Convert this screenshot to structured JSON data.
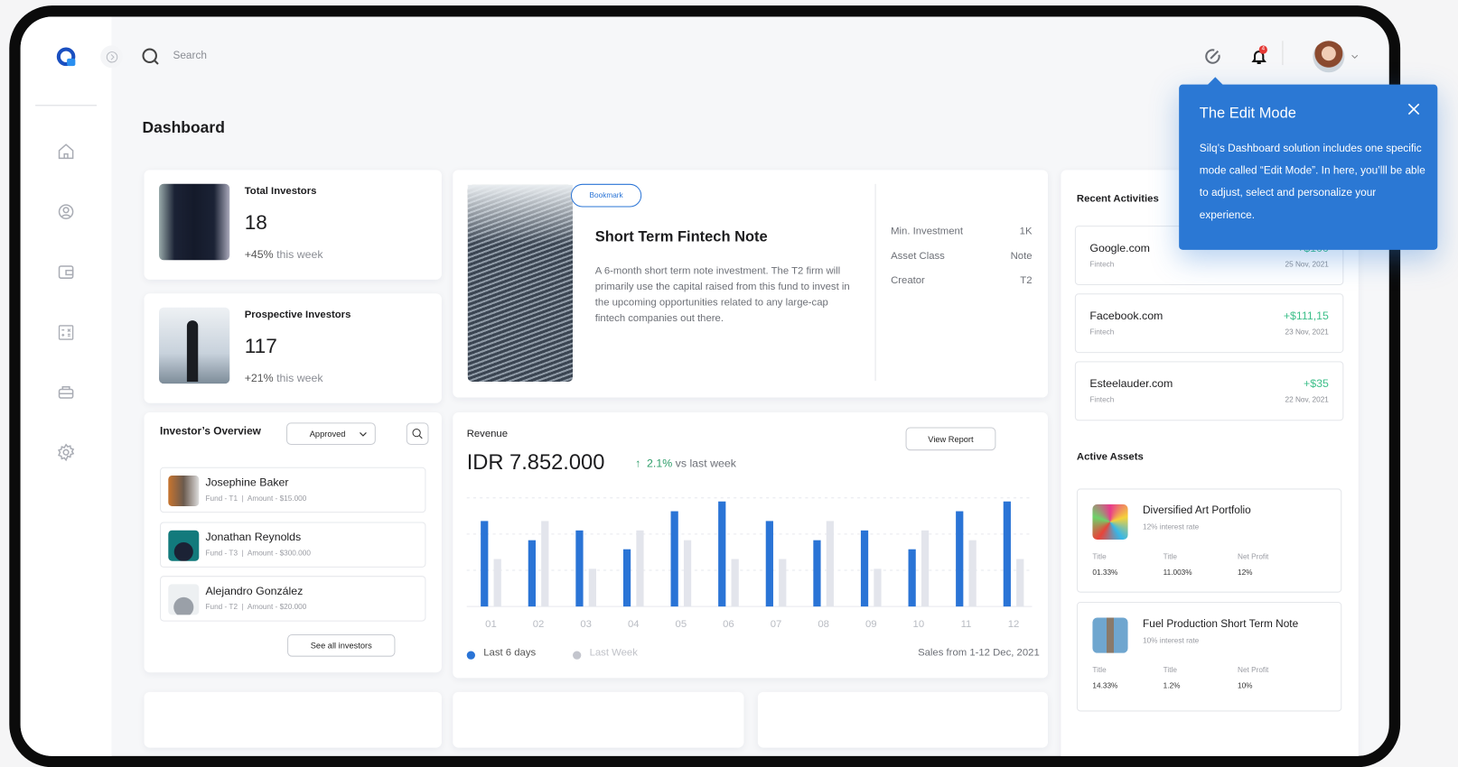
{
  "header": {
    "search_placeholder": "Search",
    "notification_count": "4"
  },
  "page_title": "Dashboard",
  "stats": [
    {
      "title": "Total Investors",
      "value": "18",
      "change": "+45%",
      "change_suffix": "this week"
    },
    {
      "title": "Prospective Investors",
      "value": "117",
      "change": "+21%",
      "change_suffix": "this week"
    }
  ],
  "overview": {
    "title": "Investor’s Overview",
    "filter": "Approved",
    "see_all": "See all investors",
    "investors": [
      {
        "name": "Josephine Baker",
        "fund": "Fund - T1",
        "amount": "Amount - $15.000"
      },
      {
        "name": "Jonathan Reynolds",
        "fund": "Fund - T3",
        "amount": "Amount - $300.000"
      },
      {
        "name": "Alejandro González",
        "fund": "Fund - T2",
        "amount": "Amount - $20.000"
      }
    ]
  },
  "note": {
    "bookmark": "Bookmark",
    "title": "Short Term Fintech Note",
    "description": "A 6-month short term note investment. The T2 firm will primarily use the capital raised from this fund to invest in the upcoming opportunities related to any large-cap fintech companies out there.",
    "details": [
      {
        "label": "Min. Investment",
        "value": "1K"
      },
      {
        "label": "Asset Class",
        "value": "Note"
      },
      {
        "label": "Creator",
        "value": "T2"
      }
    ]
  },
  "revenue": {
    "title": "Revenue",
    "amount": "IDR 7.852.000",
    "growth": "2.1%",
    "growth_suffix": "vs last week",
    "view_report": "View Report",
    "footer": "Sales from 1-12 Dec, 2021"
  },
  "chart_data": {
    "type": "bar",
    "categories": [
      "01",
      "02",
      "03",
      "04",
      "05",
      "06",
      "07",
      "08",
      "09",
      "10",
      "11",
      "12"
    ],
    "series": [
      {
        "name": "Last 6 days",
        "color": "#2a74d6",
        "values": [
          2.36,
          1.83,
          2.1,
          1.58,
          2.63,
          2.9,
          2.36,
          1.83,
          2.1,
          1.58,
          2.63,
          2.9
        ]
      },
      {
        "name": "Last Week",
        "color": "#e3e5ec",
        "values": [
          1.31,
          2.36,
          1.04,
          2.1,
          1.83,
          1.31,
          1.31,
          2.36,
          1.04,
          2.1,
          1.83,
          1.31
        ]
      }
    ],
    "ylim": [
      0,
      3
    ],
    "grid": true,
    "legend": "bottom-left"
  },
  "recent": {
    "title": "Recent Activities",
    "items": [
      {
        "name": "Google.com",
        "category": "Fintech",
        "amount": "+$100",
        "date": "25 Nov, 2021"
      },
      {
        "name": "Facebook.com",
        "category": "Fintech",
        "amount": "+$111,15",
        "date": "23 Nov, 2021"
      },
      {
        "name": "Esteelauder.com",
        "category": "Fintech",
        "amount": "+$35",
        "date": "22 Nov, 2021"
      }
    ]
  },
  "assets": {
    "title": "Active Assets",
    "items": [
      {
        "name": "Diversified Art Portfolio",
        "rate": "12% interest rate",
        "stats": [
          {
            "label": "Title",
            "value": "01.33%"
          },
          {
            "label": "Title",
            "value": "11.003%"
          },
          {
            "label": "Net Profit",
            "value": "12%"
          }
        ]
      },
      {
        "name": "Fuel Production Short Term Note",
        "rate": "10% interest rate",
        "stats": [
          {
            "label": "Title",
            "value": "14.33%"
          },
          {
            "label": "Title",
            "value": "1.2%"
          },
          {
            "label": "Net Profit",
            "value": "10%"
          }
        ]
      }
    ]
  },
  "tooltip": {
    "title": "The Edit Mode",
    "body": "Silq’s Dashboard solution includes one specific mode called “Edit Mode”. In here, you’lll be able to adjust, select and personalize your experience."
  },
  "colors": {
    "accent": "#2a74d6",
    "positive": "#3dbf8a",
    "tooltip": "#2b78d4"
  }
}
